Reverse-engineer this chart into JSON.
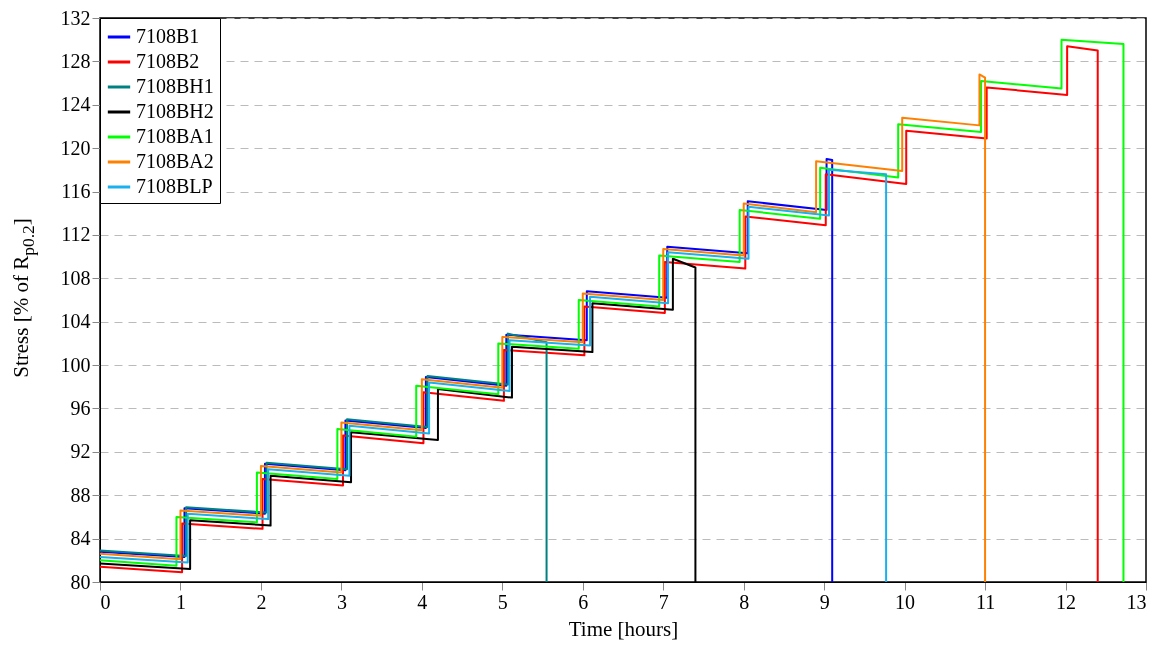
{
  "chart_data": {
    "type": "line",
    "xlabel": "Time [hours]",
    "ylabel": "Stress [% of R$_{p0.2}$]",
    "xlim": [
      0,
      13
    ],
    "ylim": [
      80,
      132
    ],
    "xticks": [
      0,
      1,
      2,
      3,
      4,
      5,
      6,
      7,
      8,
      9,
      10,
      11,
      12,
      13
    ],
    "yticks": [
      80,
      84,
      88,
      92,
      96,
      100,
      104,
      108,
      112,
      116,
      120,
      124,
      128,
      132
    ],
    "grid": "y",
    "legend": "top left",
    "series": [
      {
        "name": "7108B1",
        "color": "#0000ff",
        "x": [
          0,
          1.05,
          1.05,
          2.05,
          2.05,
          3.05,
          3.05,
          4.05,
          4.05,
          5.05,
          5.05,
          6.05,
          6.05,
          7.05,
          7.05,
          8.05,
          8.05,
          9.03,
          9.03,
          9.1,
          9.1
        ],
        "values": [
          82.8,
          82.3,
          86.8,
          86.3,
          90.9,
          90.3,
          94.9,
          94.2,
          98.9,
          98.1,
          102.8,
          102.3,
          106.8,
          106.2,
          110.9,
          110.3,
          115.1,
          114.3,
          119.0,
          118.9,
          80
        ]
      },
      {
        "name": "7108B2",
        "color": "#ff0000",
        "x": [
          0,
          1.02,
          1.02,
          2.02,
          2.02,
          3.02,
          3.02,
          4.02,
          4.02,
          5.02,
          5.02,
          6.02,
          6.02,
          7.02,
          7.02,
          8.02,
          8.02,
          9.02,
          9.02,
          10.02,
          10.02,
          11.02,
          11.02,
          12.02,
          12.02,
          12.4,
          12.4
        ],
        "values": [
          81.4,
          80.9,
          85.4,
          84.9,
          89.5,
          88.9,
          93.5,
          92.8,
          97.5,
          96.7,
          101.4,
          100.9,
          105.4,
          104.8,
          109.5,
          108.9,
          113.7,
          112.9,
          117.6,
          116.7,
          121.6,
          120.9,
          125.6,
          124.9,
          129.4,
          129.0,
          80
        ]
      },
      {
        "name": "7108BH1",
        "color": "#008080",
        "x": [
          0,
          1.07,
          1.07,
          2.07,
          2.07,
          3.07,
          3.07,
          4.07,
          4.07,
          5.07,
          5.07,
          5.55,
          5.55
        ],
        "values": [
          82.9,
          82.4,
          86.9,
          86.4,
          91.0,
          90.4,
          95.0,
          94.3,
          99.0,
          98.2,
          102.9,
          102.1,
          80
        ]
      },
      {
        "name": "7108BH2",
        "color": "#000000",
        "x": [
          0,
          1.12,
          1.12,
          2.12,
          2.12,
          3.12,
          3.12,
          4.2,
          4.2,
          5.12,
          5.12,
          6.12,
          6.12,
          7.12,
          7.12,
          7.4,
          7.4
        ],
        "values": [
          81.7,
          81.2,
          85.7,
          85.2,
          89.8,
          89.2,
          93.8,
          93.1,
          97.8,
          97.0,
          101.7,
          101.2,
          105.7,
          105.1,
          109.8,
          109.0,
          80
        ]
      },
      {
        "name": "7108BA1",
        "color": "#00ff00",
        "x": [
          0,
          0.95,
          0.95,
          1.95,
          1.95,
          2.95,
          2.95,
          3.93,
          3.93,
          4.95,
          4.95,
          5.95,
          5.95,
          6.95,
          6.95,
          7.95,
          7.95,
          8.95,
          8.95,
          9.92,
          9.92,
          10.95,
          10.95,
          11.95,
          11.95,
          12.72,
          12.72
        ],
        "values": [
          82.0,
          81.5,
          86.0,
          85.5,
          90.1,
          89.5,
          94.1,
          93.4,
          98.1,
          97.3,
          102.0,
          101.5,
          106.0,
          105.4,
          110.1,
          109.5,
          114.3,
          113.5,
          118.2,
          117.3,
          122.2,
          121.5,
          126.2,
          125.5,
          130.0,
          129.6,
          80
        ]
      },
      {
        "name": "7108BA2",
        "color": "#ff8000",
        "x": [
          0,
          1,
          1,
          2,
          2,
          3,
          3,
          4,
          4,
          5,
          5,
          6,
          6,
          7,
          7,
          8,
          8,
          8.9,
          8.9,
          9.97,
          9.97,
          10.93,
          10.93,
          11,
          11
        ],
        "values": [
          82.6,
          82.1,
          86.6,
          86.1,
          90.7,
          90.1,
          94.7,
          94.0,
          98.7,
          97.9,
          102.6,
          102.1,
          106.6,
          106.0,
          110.7,
          110.1,
          114.9,
          114.1,
          118.8,
          117.9,
          122.8,
          122.1,
          126.8,
          126.5,
          80
        ]
      },
      {
        "name": "7108BLP",
        "color": "#1ab0ec",
        "x": [
          0,
          1.09,
          1.09,
          2.09,
          2.09,
          3.1,
          3.1,
          4.09,
          4.09,
          5.09,
          5.09,
          6.09,
          6.09,
          7.06,
          7.06,
          8.06,
          8.06,
          9.06,
          9.06,
          9.77,
          9.77
        ],
        "values": [
          82.3,
          81.8,
          86.3,
          85.8,
          90.4,
          89.8,
          94.4,
          93.7,
          98.4,
          97.6,
          102.3,
          101.8,
          106.3,
          105.7,
          110.4,
          109.8,
          114.6,
          113.8,
          118.0,
          117.6,
          80
        ]
      }
    ]
  }
}
